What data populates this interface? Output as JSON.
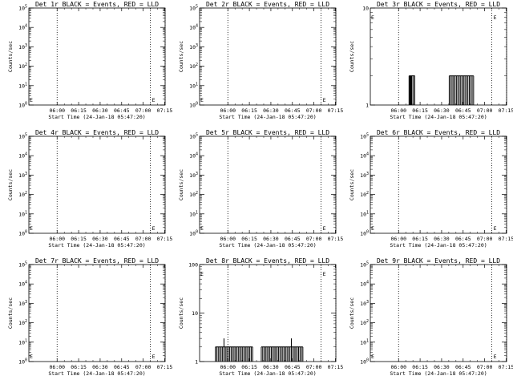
{
  "figure": {
    "background": "#ffffff",
    "foreground": "#000000",
    "event_color": "#000000",
    "lld_color": "#ff0000"
  },
  "chart_data": [
    {
      "type": "line",
      "title": "Det 1r BLACK = Events, RED = LLD",
      "xlabel": "Start Time (24-Jan-18 05:47:20)",
      "ylabel": "Counts/sec",
      "x_ticks": [
        "06:00",
        "06:15",
        "06:30",
        "06:45",
        "07:00",
        "07:15"
      ],
      "xlim_minutes": [
        -7,
        88
      ],
      "y_scale": "log",
      "y_ticks": [
        "10^0",
        "10^1",
        "10^2",
        "10^3",
        "10^4",
        "10^5"
      ],
      "dotted_lines_minutes": [
        12.7,
        77.7,
        88
      ],
      "series": []
    },
    {
      "type": "line",
      "title": "Det 2r BLACK = Events, RED = LLD",
      "xlabel": "Start Time (24-Jan-18 05:47:20)",
      "ylabel": "Counts/sec",
      "x_ticks": [
        "06:00",
        "06:15",
        "06:30",
        "06:45",
        "07:00",
        "07:15"
      ],
      "xlim_minutes": [
        -7,
        88
      ],
      "y_scale": "log",
      "y_ticks": [
        "10^0",
        "10^1",
        "10^2",
        "10^3",
        "10^4",
        "10^5"
      ],
      "dotted_lines_minutes": [
        12.7,
        77.7,
        88
      ],
      "series": []
    },
    {
      "type": "line",
      "title": "Det 3r BLACK = Events, RED = LLD",
      "xlabel": "Start Time (24-Jan-18 05:47:20)",
      "ylabel": "Counts/sec",
      "x_ticks": [
        "06:00",
        "06:15",
        "06:30",
        "06:45",
        "07:00",
        "07:15"
      ],
      "xlim_minutes": [
        -7,
        88
      ],
      "y_scale": "log",
      "y_ticks": [
        "1",
        "10"
      ],
      "dotted_lines_minutes": [
        12.7,
        77.7,
        88
      ],
      "series": [
        {
          "spikes": [
            [
              20,
              2
            ],
            [
              20.5,
              2
            ],
            [
              21,
              2
            ],
            [
              21.5,
              2
            ],
            [
              22,
              2
            ],
            [
              23,
              2
            ],
            [
              24,
              2
            ],
            [
              48,
              2
            ],
            [
              49,
              2
            ],
            [
              50,
              2
            ],
            [
              51,
              2
            ],
            [
              52,
              2
            ],
            [
              53,
              2
            ],
            [
              54,
              2
            ],
            [
              55,
              2
            ],
            [
              56,
              2
            ],
            [
              57,
              2
            ],
            [
              58,
              2
            ],
            [
              59,
              2
            ],
            [
              60,
              2
            ],
            [
              61,
              2
            ],
            [
              62,
              2
            ],
            [
              63,
              2
            ],
            [
              64,
              2
            ],
            [
              65,
              2
            ]
          ]
        }
      ]
    },
    {
      "type": "line",
      "title": "Det 4r BLACK = Events, RED = LLD",
      "xlabel": "Start Time (24-Jan-18 05:47:20)",
      "ylabel": "Counts/sec",
      "x_ticks": [
        "06:00",
        "06:15",
        "06:30",
        "06:45",
        "07:00",
        "07:15"
      ],
      "xlim_minutes": [
        -7,
        88
      ],
      "y_scale": "log",
      "y_ticks": [
        "10^0",
        "10^1",
        "10^2",
        "10^3",
        "10^4",
        "10^5"
      ],
      "dotted_lines_minutes": [
        12.7,
        77.7,
        88
      ],
      "series": []
    },
    {
      "type": "line",
      "title": "Det 5r BLACK = Events, RED = LLD",
      "xlabel": "Start Time (24-Jan-18 05:47:20)",
      "ylabel": "Counts/sec",
      "x_ticks": [
        "06:00",
        "06:15",
        "06:30",
        "06:45",
        "07:00",
        "07:15"
      ],
      "xlim_minutes": [
        -7,
        88
      ],
      "y_scale": "log",
      "y_ticks": [
        "10^0",
        "10^1",
        "10^2",
        "10^3",
        "10^4",
        "10^5"
      ],
      "dotted_lines_minutes": [
        12.7,
        77.7,
        88
      ],
      "series": []
    },
    {
      "type": "line",
      "title": "Det 6r BLACK = Events, RED = LLD",
      "xlabel": "Start Time (24-Jan-18 05:47:20)",
      "ylabel": "Counts/sec",
      "x_ticks": [
        "06:00",
        "06:15",
        "06:30",
        "06:45",
        "07:00",
        "07:15"
      ],
      "xlim_minutes": [
        -7,
        88
      ],
      "y_scale": "log",
      "y_ticks": [
        "10^0",
        "10^1",
        "10^2",
        "10^3",
        "10^4",
        "10^5"
      ],
      "dotted_lines_minutes": [
        12.7,
        77.7,
        88
      ],
      "series": []
    },
    {
      "type": "line",
      "title": "Det 7r BLACK = Events, RED = LLD",
      "xlabel": "Start Time (24-Jan-18 05:47:20)",
      "ylabel": "Counts/sec",
      "x_ticks": [
        "06:00",
        "06:15",
        "06:30",
        "06:45",
        "07:00",
        "07:15"
      ],
      "xlim_minutes": [
        -7,
        88
      ],
      "y_scale": "log",
      "y_ticks": [
        "10^0",
        "10^1",
        "10^2",
        "10^3",
        "10^4",
        "10^5"
      ],
      "dotted_lines_minutes": [
        12.7,
        77.7,
        88
      ],
      "series": []
    },
    {
      "type": "line",
      "title": "Det 8r BLACK = Events, RED = LLD",
      "xlabel": "Start Time (24-Jan-18 05:47:20)",
      "ylabel": "Counts/sec",
      "x_ticks": [
        "06:00",
        "06:15",
        "06:30",
        "06:45",
        "07:00",
        "07:15"
      ],
      "xlim_minutes": [
        -7,
        88
      ],
      "y_scale": "log",
      "y_ticks": [
        "1",
        "10",
        "100"
      ],
      "dotted_lines_minutes": [
        12.7,
        77.7,
        88
      ],
      "series": [
        {
          "spikes": [
            [
              4,
              2
            ],
            [
              5,
              2
            ],
            [
              6,
              2
            ],
            [
              7,
              2
            ],
            [
              8,
              2
            ],
            [
              9,
              2
            ],
            [
              10,
              3
            ],
            [
              11,
              2
            ],
            [
              12,
              2
            ],
            [
              13,
              2
            ],
            [
              14,
              2
            ],
            [
              15,
              2
            ],
            [
              16,
              2
            ],
            [
              17,
              2
            ],
            [
              18,
              2
            ],
            [
              19,
              2
            ],
            [
              20,
              2
            ],
            [
              21,
              2
            ],
            [
              22,
              2
            ],
            [
              23,
              2
            ],
            [
              24,
              2
            ],
            [
              25,
              2
            ],
            [
              26,
              2
            ],
            [
              27,
              2
            ],
            [
              28,
              2
            ],
            [
              29,
              2
            ],
            [
              30,
              2
            ],
            [
              36,
              2
            ],
            [
              37,
              2
            ],
            [
              38,
              2
            ],
            [
              39,
              2
            ],
            [
              40,
              2
            ],
            [
              41,
              2
            ],
            [
              42,
              2
            ],
            [
              43,
              2
            ],
            [
              44,
              2
            ],
            [
              45,
              2
            ],
            [
              46,
              2
            ],
            [
              47,
              2
            ],
            [
              48,
              2
            ],
            [
              49,
              2
            ],
            [
              50,
              2
            ],
            [
              51,
              2
            ],
            [
              52,
              2
            ],
            [
              53,
              2
            ],
            [
              54,
              2
            ],
            [
              55,
              2
            ],
            [
              56,
              2
            ],
            [
              57,
              3
            ],
            [
              58,
              2
            ],
            [
              59,
              2
            ],
            [
              60,
              2
            ],
            [
              61,
              2
            ],
            [
              62,
              2
            ],
            [
              63,
              2
            ],
            [
              64,
              2
            ],
            [
              65,
              2
            ]
          ]
        }
      ]
    },
    {
      "type": "line",
      "title": "Det 9r BLACK = Events, RED = LLD",
      "xlabel": "Start Time (24-Jan-18 05:47:20)",
      "ylabel": "Counts/sec",
      "x_ticks": [
        "06:00",
        "06:15",
        "06:30",
        "06:45",
        "07:00",
        "07:15"
      ],
      "xlim_minutes": [
        -7,
        88
      ],
      "y_scale": "log",
      "y_ticks": [
        "10^0",
        "10^1",
        "10^2",
        "10^3",
        "10^4",
        "10^5"
      ],
      "dotted_lines_minutes": [
        12.7,
        77.7,
        88
      ],
      "series": []
    }
  ]
}
